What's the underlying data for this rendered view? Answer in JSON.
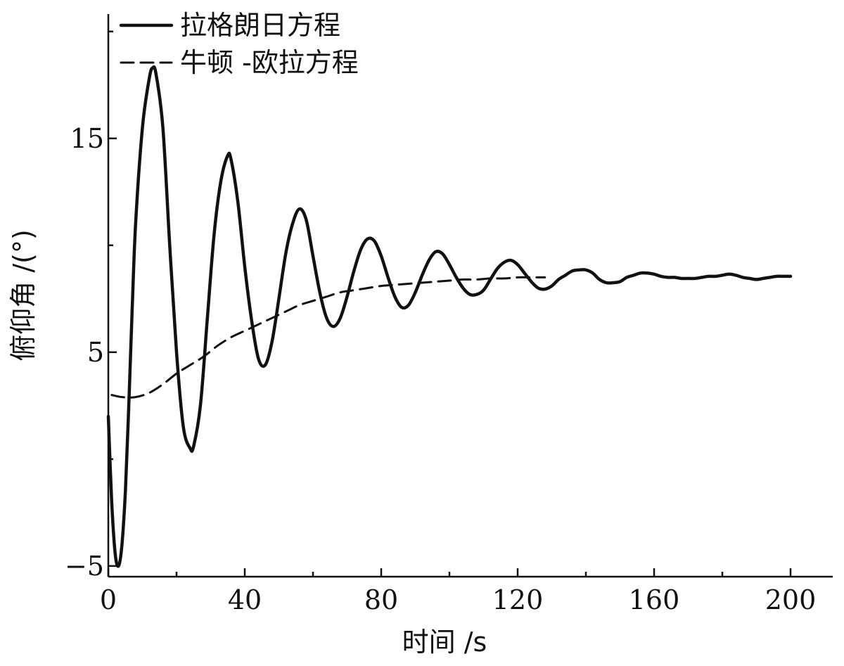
{
  "chart_data": {
    "type": "line",
    "xlabel": "时间 /s",
    "ylabel": "俯仰角 /(°)",
    "xlim": [
      0,
      212
    ],
    "ylim": [
      -5.5,
      25
    ],
    "x_ticks": [
      0,
      40,
      80,
      120,
      160,
      200
    ],
    "x_tick_labels": [
      "0",
      "40",
      "80",
      "120",
      "160",
      "200"
    ],
    "y_ticks": [
      -5,
      5,
      15
    ],
    "y_tick_labels": [
      "−5",
      "5",
      "15"
    ],
    "grid": false,
    "legend_position": "top-left",
    "series": [
      {
        "name": "拉格朗日方程",
        "style": "solid",
        "color": "#111111",
        "points": [
          [
            0,
            2.0
          ],
          [
            1,
            -2.0
          ],
          [
            2,
            -4.4
          ],
          [
            3,
            -5.0
          ],
          [
            4,
            -4.0
          ],
          [
            5,
            -1.5
          ],
          [
            6,
            2.5
          ],
          [
            7,
            7.0
          ],
          [
            8,
            11.0
          ],
          [
            10,
            15.5
          ],
          [
            12,
            17.8
          ],
          [
            13,
            18.3
          ],
          [
            14,
            18.0
          ],
          [
            16,
            15.5
          ],
          [
            18,
            10.0
          ],
          [
            20,
            5.0
          ],
          [
            22,
            1.5
          ],
          [
            24,
            0.5
          ],
          [
            25,
            0.6
          ],
          [
            27,
            2.5
          ],
          [
            29,
            6.5
          ],
          [
            31,
            10.5
          ],
          [
            33,
            13.0
          ],
          [
            35,
            14.2
          ],
          [
            36,
            14.0
          ],
          [
            38,
            12.0
          ],
          [
            40,
            9.0
          ],
          [
            42,
            6.5
          ],
          [
            44,
            4.7
          ],
          [
            46,
            4.4
          ],
          [
            48,
            5.5
          ],
          [
            50,
            7.5
          ],
          [
            52,
            9.6
          ],
          [
            54,
            11.0
          ],
          [
            56,
            11.7
          ],
          [
            58,
            11.2
          ],
          [
            60,
            9.5
          ],
          [
            62,
            7.8
          ],
          [
            64,
            6.6
          ],
          [
            66,
            6.2
          ],
          [
            68,
            6.6
          ],
          [
            70,
            7.6
          ],
          [
            72,
            8.8
          ],
          [
            74,
            9.8
          ],
          [
            76,
            10.3
          ],
          [
            78,
            10.2
          ],
          [
            80,
            9.5
          ],
          [
            82,
            8.5
          ],
          [
            84,
            7.6
          ],
          [
            86,
            7.1
          ],
          [
            88,
            7.2
          ],
          [
            90,
            7.8
          ],
          [
            92,
            8.6
          ],
          [
            94,
            9.3
          ],
          [
            96,
            9.7
          ],
          [
            98,
            9.6
          ],
          [
            100,
            9.1
          ],
          [
            102,
            8.5
          ],
          [
            104,
            8.0
          ],
          [
            106,
            7.7
          ],
          [
            108,
            7.7
          ],
          [
            110,
            7.9
          ],
          [
            112,
            8.4
          ],
          [
            114,
            8.9
          ],
          [
            116,
            9.2
          ],
          [
            118,
            9.3
          ],
          [
            120,
            9.1
          ],
          [
            122,
            8.7
          ],
          [
            124,
            8.3
          ],
          [
            126,
            8.0
          ],
          [
            128,
            7.95
          ],
          [
            130,
            8.1
          ],
          [
            132,
            8.4
          ],
          [
            134,
            8.6
          ],
          [
            136,
            8.8
          ],
          [
            138,
            8.85
          ],
          [
            140,
            8.85
          ],
          [
            142,
            8.7
          ],
          [
            144,
            8.4
          ],
          [
            146,
            8.25
          ],
          [
            148,
            8.25
          ],
          [
            150,
            8.3
          ],
          [
            152,
            8.5
          ],
          [
            154,
            8.6
          ],
          [
            156,
            8.7
          ],
          [
            158,
            8.7
          ],
          [
            160,
            8.65
          ],
          [
            162,
            8.55
          ],
          [
            164,
            8.5
          ],
          [
            166,
            8.5
          ],
          [
            168,
            8.45
          ],
          [
            170,
            8.45
          ],
          [
            172,
            8.45
          ],
          [
            174,
            8.5
          ],
          [
            176,
            8.55
          ],
          [
            178,
            8.55
          ],
          [
            180,
            8.6
          ],
          [
            182,
            8.65
          ],
          [
            184,
            8.6
          ],
          [
            186,
            8.5
          ],
          [
            188,
            8.45
          ],
          [
            190,
            8.4
          ],
          [
            192,
            8.45
          ],
          [
            194,
            8.5
          ],
          [
            196,
            8.55
          ],
          [
            198,
            8.55
          ],
          [
            200,
            8.55
          ]
        ]
      },
      {
        "name": "牛顿 -欧拉方程",
        "style": "dashed",
        "color": "#111111",
        "points": [
          [
            1,
            3.0
          ],
          [
            4,
            2.9
          ],
          [
            8,
            2.9
          ],
          [
            12,
            3.1
          ],
          [
            16,
            3.5
          ],
          [
            20,
            4.0
          ],
          [
            24,
            4.4
          ],
          [
            28,
            4.8
          ],
          [
            32,
            5.3
          ],
          [
            36,
            5.7
          ],
          [
            40,
            6.0
          ],
          [
            44,
            6.3
          ],
          [
            48,
            6.6
          ],
          [
            52,
            6.9
          ],
          [
            56,
            7.2
          ],
          [
            60,
            7.4
          ],
          [
            64,
            7.6
          ],
          [
            68,
            7.8
          ],
          [
            72,
            7.9
          ],
          [
            76,
            8.0
          ],
          [
            80,
            8.1
          ],
          [
            84,
            8.15
          ],
          [
            88,
            8.2
          ],
          [
            92,
            8.25
          ],
          [
            96,
            8.3
          ],
          [
            100,
            8.35
          ],
          [
            104,
            8.4
          ],
          [
            108,
            8.4
          ],
          [
            112,
            8.45
          ],
          [
            116,
            8.45
          ],
          [
            120,
            8.5
          ],
          [
            124,
            8.5
          ],
          [
            128,
            8.5
          ]
        ]
      }
    ]
  }
}
